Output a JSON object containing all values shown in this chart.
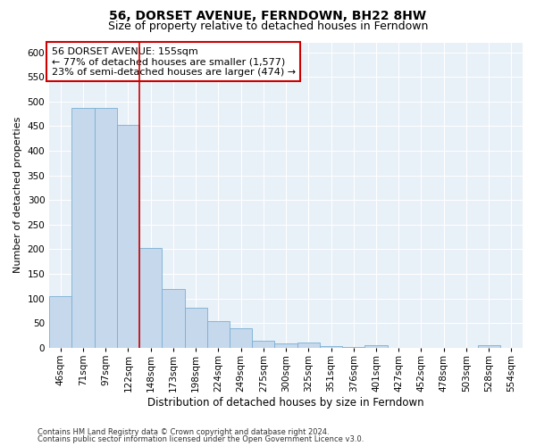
{
  "title": "56, DORSET AVENUE, FERNDOWN, BH22 8HW",
  "subtitle": "Size of property relative to detached houses in Ferndown",
  "xlabel": "Distribution of detached houses by size in Ferndown",
  "ylabel": "Number of detached properties",
  "categories": [
    "46sqm",
    "71sqm",
    "97sqm",
    "122sqm",
    "148sqm",
    "173sqm",
    "198sqm",
    "224sqm",
    "249sqm",
    "275sqm",
    "300sqm",
    "325sqm",
    "351sqm",
    "376sqm",
    "401sqm",
    "427sqm",
    "452sqm",
    "478sqm",
    "503sqm",
    "528sqm",
    "554sqm"
  ],
  "values": [
    105,
    487,
    487,
    453,
    202,
    120,
    82,
    55,
    40,
    14,
    9,
    10,
    3,
    1,
    5,
    0,
    0,
    0,
    0,
    6,
    0
  ],
  "bar_color": "#c5d8ec",
  "bar_edge_color": "#7aafd4",
  "annotation_line1": "56 DORSET AVENUE: 155sqm",
  "annotation_line2": "← 77% of detached houses are smaller (1,577)",
  "annotation_line3": "23% of semi-detached houses are larger (474) →",
  "annotation_box_color": "#ffffff",
  "annotation_box_edge_color": "#cc0000",
  "vline_color": "#cc0000",
  "vline_x_index": 4,
  "ylim": [
    0,
    620
  ],
  "yticks": [
    0,
    50,
    100,
    150,
    200,
    250,
    300,
    350,
    400,
    450,
    500,
    550,
    600
  ],
  "footer_line1": "Contains HM Land Registry data © Crown copyright and database right 2024.",
  "footer_line2": "Contains public sector information licensed under the Open Government Licence v3.0.",
  "plot_bg_color": "#e8f0f8",
  "title_fontsize": 10,
  "subtitle_fontsize": 9,
  "ylabel_fontsize": 8,
  "xlabel_fontsize": 8.5,
  "tick_fontsize": 7.5,
  "annotation_fontsize": 8,
  "footer_fontsize": 6
}
